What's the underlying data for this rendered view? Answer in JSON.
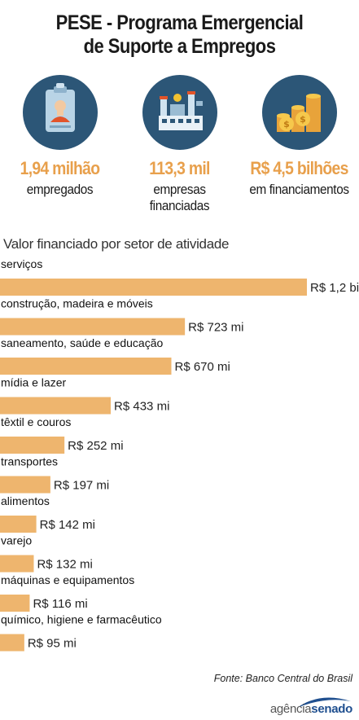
{
  "header": {
    "title_line1": "PESE - Programa Emergencial",
    "title_line2": "de Suporte a Empregos"
  },
  "stats": [
    {
      "icon": "id-badge-icon",
      "value": "1,94 milhão",
      "label_line1": "empregados",
      "label_line2": ""
    },
    {
      "icon": "factory-icon",
      "value": "113,3 mil",
      "label_line1": "empresas",
      "label_line2": "financiadas"
    },
    {
      "icon": "coins-icon",
      "value": "R$ 4,5 bilhões",
      "label_line1": "em financiamentos",
      "label_line2": ""
    }
  ],
  "chart_data": {
    "type": "bar",
    "orientation": "horizontal",
    "title": "Valor financiado por setor de atividade",
    "categories": [
      "serviços",
      "construção, madeira e móveis",
      "saneamento, saúde e educação",
      "mídia e lazer",
      "têxtil e couros",
      "transportes",
      "alimentos",
      "varejo",
      "máquinas e equipamentos",
      "químico, higiene e farmacêutico"
    ],
    "values": [
      1200,
      723,
      670,
      433,
      252,
      197,
      142,
      132,
      116,
      95
    ],
    "value_unit": "R$ mi",
    "data_labels": [
      "R$ 1,2 bi",
      "R$ 723 mi",
      "R$ 670 mi",
      "R$ 433 mi",
      "R$ 252 mi",
      "R$ 197 mi",
      "R$ 142 mi",
      "R$ 132 mi",
      "R$ 116 mi",
      "R$ 95 mi"
    ],
    "bar_color": "#eeb56e",
    "xlim": [
      0,
      1200
    ],
    "grid": false,
    "legend": "none"
  },
  "footer": {
    "source": "Fonte: Banco Central do Brasil",
    "logo_part1": "agência",
    "logo_part2": "senado"
  },
  "colors": {
    "accent": "#e8a04c",
    "circle_bg": "#2c5677",
    "brand_blue": "#1f4f8f"
  }
}
